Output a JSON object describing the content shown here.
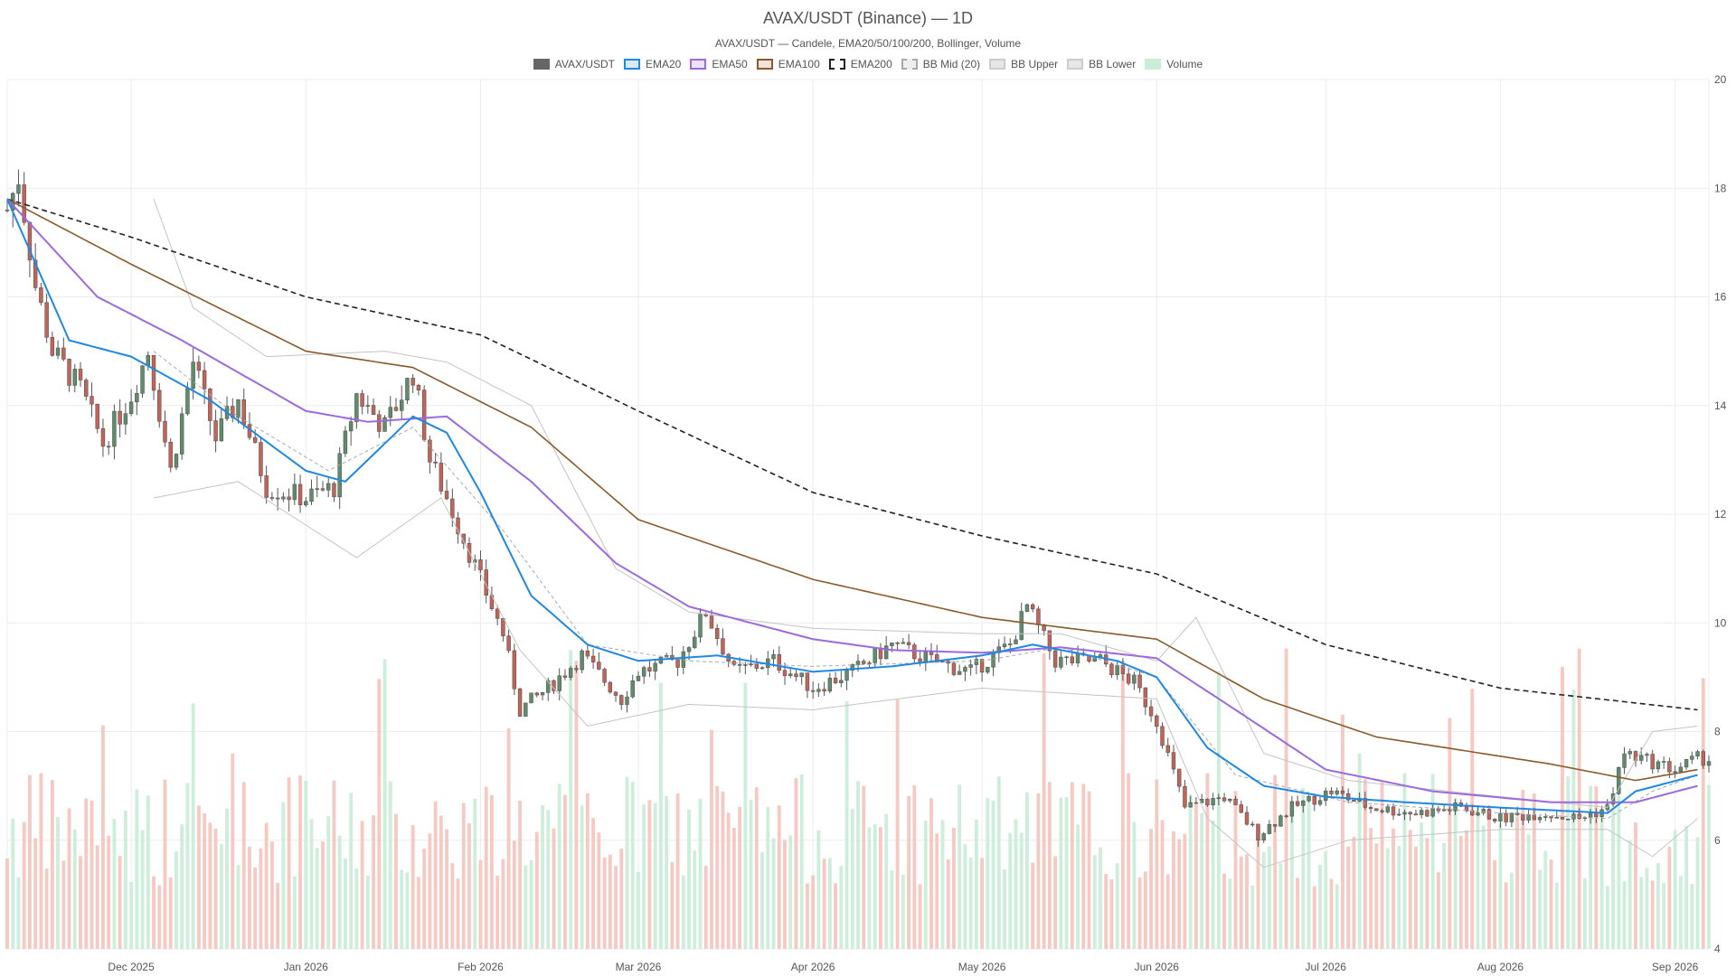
{
  "chart_data": {
    "type": "candlestick",
    "title": "AVAX/USDT (Binance) — 1D",
    "subtitle": "AVAX/USDT — Candele, EMA20/50/100/200, Bollinger, Volume",
    "legend": [
      {
        "key": "candles",
        "label": "AVAX/USDT",
        "color": "#666666",
        "fill": "#666666",
        "style": "solid"
      },
      {
        "key": "ema20",
        "label": "EMA20",
        "color": "#1e88e5",
        "fill": "#dbe9f5",
        "style": "solid"
      },
      {
        "key": "ema50",
        "label": "EMA50",
        "color": "#9c6ade",
        "fill": "#ede3f7",
        "style": "solid"
      },
      {
        "key": "ema100",
        "label": "EMA100",
        "color": "#8b5a2b",
        "fill": "#f2e4dc",
        "style": "solid"
      },
      {
        "key": "ema200",
        "label": "EMA200",
        "color": "#222222",
        "fill": "#ffffff",
        "style": "dashed"
      },
      {
        "key": "bbmid",
        "label": "BB Mid (20)",
        "color": "#aaaaaa",
        "fill": "#eeeeee",
        "style": "dashed"
      },
      {
        "key": "bbupper",
        "label": "BB Upper",
        "color": "#cccccc",
        "fill": "#e6e6e6",
        "style": "solid"
      },
      {
        "key": "bblower",
        "label": "BB Lower",
        "color": "#cccccc",
        "fill": "#e6e6e6",
        "style": "solid"
      },
      {
        "key": "volume",
        "label": "Volume",
        "color": "#c8ecd8",
        "fill": "#c8ecd8",
        "style": "solid"
      }
    ],
    "colors": {
      "up": "#5e8d6b",
      "down": "#c46357",
      "vol_up": "#cdeedb",
      "vol_down": "#f6c9c3",
      "grid": "#ececec"
    },
    "x_ticks": [
      {
        "label": "Dec 2025",
        "date": "2025-12-01"
      },
      {
        "label": "Jan 2026",
        "date": "2026-01-01"
      },
      {
        "label": "Feb 2026",
        "date": "2026-02-01"
      },
      {
        "label": "Mar 2026",
        "date": "2026-03-01"
      },
      {
        "label": "Apr 2026",
        "date": "2026-04-01"
      },
      {
        "label": "May 2026",
        "date": "2026-05-01"
      },
      {
        "label": "Jun 2026",
        "date": "2026-06-01"
      },
      {
        "label": "Jul 2026",
        "date": "2026-07-01"
      },
      {
        "label": "Aug 2026",
        "date": "2026-08-01"
      },
      {
        "label": "Sep 2026",
        "date": "2026-09-01"
      }
    ],
    "y_ticks": [
      4,
      6,
      8,
      10,
      12,
      14,
      16,
      18,
      20
    ],
    "ylim": [
      4,
      20
    ],
    "xlim": [
      "2025-11-09",
      "2026-09-07"
    ],
    "grid": true,
    "legend_position": "top-center",
    "close_anchors": [
      [
        "2025-11-09",
        17.6
      ],
      [
        "2025-11-11",
        18.2
      ],
      [
        "2025-11-14",
        16.2
      ],
      [
        "2025-11-17",
        15.0
      ],
      [
        "2025-11-22",
        14.3
      ],
      [
        "2025-11-26",
        13.3
      ],
      [
        "2025-12-01",
        14.2
      ],
      [
        "2025-12-04",
        15.0
      ],
      [
        "2025-12-08",
        12.8
      ],
      [
        "2025-12-12",
        14.8
      ],
      [
        "2025-12-16",
        13.4
      ],
      [
        "2025-12-20",
        14.1
      ],
      [
        "2025-12-25",
        12.5
      ],
      [
        "2026-01-01",
        12.3
      ],
      [
        "2026-01-06",
        12.5
      ],
      [
        "2026-01-10",
        14.2
      ],
      [
        "2026-01-15",
        13.6
      ],
      [
        "2026-01-20",
        14.6
      ],
      [
        "2026-01-23",
        13.0
      ],
      [
        "2026-01-26",
        12.3
      ],
      [
        "2026-02-01",
        10.8
      ],
      [
        "2026-02-05",
        9.8
      ],
      [
        "2026-02-08",
        8.4
      ],
      [
        "2026-02-13",
        8.8
      ],
      [
        "2026-02-19",
        9.4
      ],
      [
        "2026-02-26",
        8.6
      ],
      [
        "2026-03-01",
        9.1
      ],
      [
        "2026-03-08",
        9.3
      ],
      [
        "2026-03-13",
        10.2
      ],
      [
        "2026-03-18",
        9.1
      ],
      [
        "2026-03-25",
        9.3
      ],
      [
        "2026-04-01",
        8.8
      ],
      [
        "2026-04-08",
        9.1
      ],
      [
        "2026-04-15",
        9.6
      ],
      [
        "2026-04-22",
        9.3
      ],
      [
        "2026-04-29",
        9.1
      ],
      [
        "2026-05-06",
        9.6
      ],
      [
        "2026-05-09",
        10.3
      ],
      [
        "2026-05-14",
        9.3
      ],
      [
        "2026-05-22",
        9.3
      ],
      [
        "2026-05-28",
        8.9
      ],
      [
        "2026-06-01",
        8.2
      ],
      [
        "2026-06-06",
        6.6
      ],
      [
        "2026-06-13",
        6.8
      ],
      [
        "2026-06-19",
        6.1
      ],
      [
        "2026-06-25",
        6.6
      ],
      [
        "2026-07-02",
        6.9
      ],
      [
        "2026-07-09",
        6.6
      ],
      [
        "2026-07-17",
        6.5
      ],
      [
        "2026-07-25",
        6.6
      ],
      [
        "2026-08-01",
        6.4
      ],
      [
        "2026-08-08",
        6.5
      ],
      [
        "2026-08-15",
        6.4
      ],
      [
        "2026-08-20",
        6.6
      ],
      [
        "2026-08-23",
        7.6
      ],
      [
        "2026-08-29",
        7.4
      ],
      [
        "2026-09-01",
        7.3
      ],
      [
        "2026-09-05",
        7.5
      ]
    ],
    "ema_anchors": {
      "ema20": [
        [
          "2025-11-09",
          17.8
        ],
        [
          "2025-11-20",
          15.2
        ],
        [
          "2025-12-01",
          14.9
        ],
        [
          "2025-12-15",
          14.1
        ],
        [
          "2026-01-01",
          12.8
        ],
        [
          "2026-01-08",
          12.6
        ],
        [
          "2026-01-20",
          13.8
        ],
        [
          "2026-01-26",
          13.5
        ],
        [
          "2026-02-01",
          12.4
        ],
        [
          "2026-02-10",
          10.5
        ],
        [
          "2026-02-20",
          9.6
        ],
        [
          "2026-03-01",
          9.3
        ],
        [
          "2026-03-15",
          9.4
        ],
        [
          "2026-04-01",
          9.1
        ],
        [
          "2026-04-15",
          9.2
        ],
        [
          "2026-05-01",
          9.4
        ],
        [
          "2026-05-10",
          9.6
        ],
        [
          "2026-05-25",
          9.3
        ],
        [
          "2026-06-01",
          9.0
        ],
        [
          "2026-06-10",
          7.7
        ],
        [
          "2026-06-20",
          7.0
        ],
        [
          "2026-07-01",
          6.8
        ],
        [
          "2026-07-15",
          6.7
        ],
        [
          "2026-08-01",
          6.6
        ],
        [
          "2026-08-20",
          6.5
        ],
        [
          "2026-08-25",
          6.9
        ],
        [
          "2026-09-05",
          7.2
        ]
      ],
      "ema50": [
        [
          "2025-11-09",
          17.8
        ],
        [
          "2025-11-25",
          16.0
        ],
        [
          "2025-12-10",
          15.2
        ],
        [
          "2026-01-01",
          13.9
        ],
        [
          "2026-01-12",
          13.7
        ],
        [
          "2026-01-26",
          13.8
        ],
        [
          "2026-02-10",
          12.6
        ],
        [
          "2026-02-25",
          11.1
        ],
        [
          "2026-03-10",
          10.3
        ],
        [
          "2026-04-01",
          9.7
        ],
        [
          "2026-04-15",
          9.5
        ],
        [
          "2026-05-01",
          9.45
        ],
        [
          "2026-05-15",
          9.55
        ],
        [
          "2026-06-01",
          9.35
        ],
        [
          "2026-06-15",
          8.4
        ],
        [
          "2026-07-01",
          7.3
        ],
        [
          "2026-07-20",
          6.9
        ],
        [
          "2026-08-10",
          6.7
        ],
        [
          "2026-08-25",
          6.7
        ],
        [
          "2026-09-05",
          7.0
        ]
      ],
      "ema100": [
        [
          "2025-11-09",
          17.8
        ],
        [
          "2025-12-01",
          16.6
        ],
        [
          "2026-01-01",
          15.0
        ],
        [
          "2026-01-20",
          14.7
        ],
        [
          "2026-02-10",
          13.6
        ],
        [
          "2026-03-01",
          11.9
        ],
        [
          "2026-04-01",
          10.8
        ],
        [
          "2026-05-01",
          10.1
        ],
        [
          "2026-06-01",
          9.7
        ],
        [
          "2026-06-20",
          8.6
        ],
        [
          "2026-07-10",
          7.9
        ],
        [
          "2026-08-10",
          7.4
        ],
        [
          "2026-08-25",
          7.1
        ],
        [
          "2026-09-05",
          7.3
        ]
      ],
      "ema200": [
        [
          "2025-11-09",
          17.8
        ],
        [
          "2025-12-01",
          17.1
        ],
        [
          "2026-01-01",
          16.0
        ],
        [
          "2026-02-01",
          15.3
        ],
        [
          "2026-03-01",
          13.9
        ],
        [
          "2026-04-01",
          12.4
        ],
        [
          "2026-05-01",
          11.6
        ],
        [
          "2026-06-01",
          10.9
        ],
        [
          "2026-07-01",
          9.6
        ],
        [
          "2026-08-01",
          8.8
        ],
        [
          "2026-09-05",
          8.4
        ]
      ]
    },
    "bb_anchors": {
      "upper": [
        [
          "2025-12-05",
          17.8
        ],
        [
          "2025-12-12",
          15.8
        ],
        [
          "2025-12-25",
          14.9
        ],
        [
          "2026-01-15",
          15.0
        ],
        [
          "2026-01-26",
          14.8
        ],
        [
          "2026-02-10",
          14.0
        ],
        [
          "2026-02-25",
          11.0
        ],
        [
          "2026-03-10",
          10.2
        ],
        [
          "2026-04-01",
          9.9
        ],
        [
          "2026-05-01",
          9.8
        ],
        [
          "2026-05-15",
          9.8
        ],
        [
          "2026-06-01",
          9.3
        ],
        [
          "2026-06-08",
          10.1
        ],
        [
          "2026-06-20",
          7.6
        ],
        [
          "2026-07-05",
          7.1
        ],
        [
          "2026-08-01",
          6.8
        ],
        [
          "2026-08-20",
          6.6
        ],
        [
          "2026-08-28",
          8.0
        ],
        [
          "2026-09-05",
          8.1
        ]
      ],
      "lower": [
        [
          "2025-12-05",
          12.3
        ],
        [
          "2025-12-20",
          12.6
        ],
        [
          "2026-01-10",
          11.2
        ],
        [
          "2026-01-25",
          12.3
        ],
        [
          "2026-02-08",
          9.5
        ],
        [
          "2026-02-20",
          8.1
        ],
        [
          "2026-03-10",
          8.5
        ],
        [
          "2026-04-01",
          8.4
        ],
        [
          "2026-05-01",
          8.8
        ],
        [
          "2026-06-01",
          8.6
        ],
        [
          "2026-06-10",
          6.4
        ],
        [
          "2026-06-20",
          5.5
        ],
        [
          "2026-07-05",
          6.0
        ],
        [
          "2026-08-01",
          6.2
        ],
        [
          "2026-08-20",
          6.2
        ],
        [
          "2026-08-28",
          5.7
        ],
        [
          "2026-09-05",
          6.4
        ]
      ],
      "mid": [
        [
          "2025-12-05",
          15.0
        ],
        [
          "2025-12-20",
          13.8
        ],
        [
          "2026-01-05",
          12.8
        ],
        [
          "2026-01-20",
          13.6
        ],
        [
          "2026-02-05",
          11.7
        ],
        [
          "2026-02-20",
          9.6
        ],
        [
          "2026-03-10",
          9.3
        ],
        [
          "2026-04-01",
          9.2
        ],
        [
          "2026-05-01",
          9.3
        ],
        [
          "2026-05-15",
          9.55
        ],
        [
          "2026-06-01",
          9.0
        ],
        [
          "2026-06-15",
          7.2
        ],
        [
          "2026-07-05",
          6.7
        ],
        [
          "2026-08-01",
          6.5
        ],
        [
          "2026-08-20",
          6.4
        ],
        [
          "2026-08-28",
          6.9
        ],
        [
          "2026-09-05",
          7.2
        ]
      ]
    },
    "volume_note": "volume bars scaled to lower ~40% of plot; spikes around 2026-02-04, 2026-02-24, 2026-04-10, 2026-06-03, 2026-06-20, 2026-08-25"
  }
}
